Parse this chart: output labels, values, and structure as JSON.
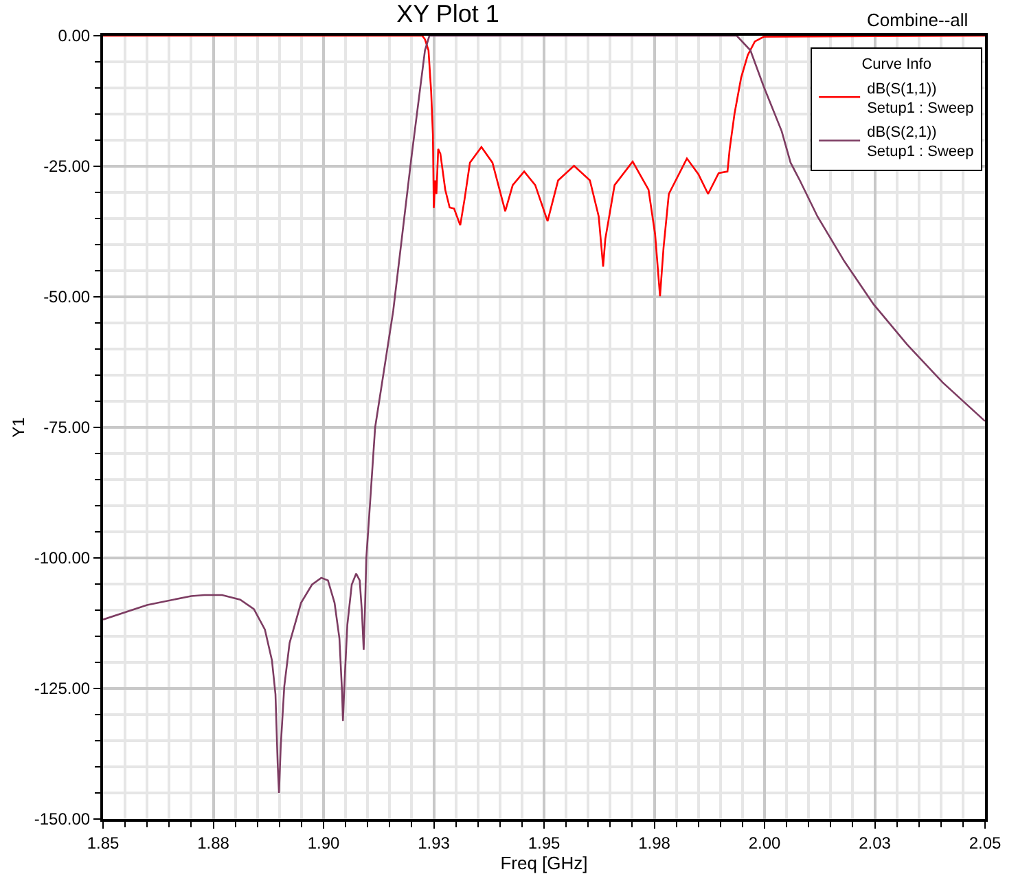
{
  "chart_data": {
    "type": "line",
    "title": "XY Plot 1",
    "xlabel": "Freq [GHz]",
    "ylabel": "Y1",
    "legend_title": "Curve Info",
    "annotations": [
      "Combine--all"
    ],
    "xlim": [
      1.85,
      2.05
    ],
    "ylim": [
      -150,
      0
    ],
    "xticks": [
      1.85,
      {
        "value": 1.875,
        "label": "1.88"
      },
      {
        "value": 1.9,
        "label": "1.90"
      },
      {
        "value": 1.925,
        "label": "1.93"
      },
      1.95,
      {
        "value": 1.975,
        "label": "1.98"
      },
      {
        "value": 2.0,
        "label": "2.00"
      },
      {
        "value": 2.025,
        "label": "2.03"
      },
      2.05
    ],
    "yticks": [
      {
        "value": 0,
        "label": "0.00"
      },
      {
        "value": -25,
        "label": "-25.00"
      },
      {
        "value": -50,
        "label": "-50.00"
      },
      {
        "value": -75,
        "label": "-75.00"
      },
      {
        "value": -100,
        "label": "-100.00"
      },
      {
        "value": -125,
        "label": "-125.00"
      },
      {
        "value": -150,
        "label": "-150.00"
      }
    ],
    "grid": true,
    "legend": "top right",
    "marker": "none",
    "line_style": "solid",
    "series": [
      {
        "name": "dB(S(1,1))\nSetup1 : Sweep",
        "color": "#ff0000",
        "x": [
          1.85,
          1.9224,
          1.923,
          1.9238,
          1.9244,
          1.9248,
          1.925,
          1.9253,
          1.9256,
          1.926,
          1.9265,
          1.9276,
          1.9286,
          1.9296,
          1.931,
          1.932,
          1.9332,
          1.9358,
          1.9383,
          1.9412,
          1.9429,
          1.9455,
          1.948,
          1.9508,
          1.9532,
          1.9568,
          1.9604,
          1.9624,
          1.9634,
          1.9639,
          1.966,
          1.9701,
          1.9737,
          1.9752,
          1.9763,
          1.9771,
          1.9783,
          1.9824,
          1.985,
          1.9872,
          1.9896,
          1.9916,
          1.9921,
          1.9932,
          1.9947,
          1.9962,
          1.9978,
          1.9998,
          2.05
        ],
        "values": [
          0,
          0,
          -0.7,
          -2.8,
          -10.6,
          -19,
          -33,
          -27.7,
          -30.3,
          -21.7,
          -22.6,
          -29.5,
          -32.9,
          -33.1,
          -36.3,
          -31.2,
          -24.3,
          -21.3,
          -24.3,
          -33.6,
          -28.6,
          -26.0,
          -28.6,
          -35.5,
          -27.7,
          -24.9,
          -27.7,
          -34.6,
          -44.2,
          -38.9,
          -28.6,
          -24.1,
          -29.5,
          -38.1,
          -49.9,
          -40.6,
          -30.3,
          -23.5,
          -26.5,
          -30.3,
          -26.3,
          -26.0,
          -21.7,
          -14.9,
          -8.0,
          -3.7,
          -1.1,
          -0.2,
          0
        ]
      },
      {
        "name": "dB(S(2,1))\nSetup1 : Sweep",
        "color": "#7d3c62",
        "x": [
          1.85,
          1.86,
          1.87,
          1.873,
          1.877,
          1.8811,
          1.8842,
          1.8867,
          1.8883,
          1.8891,
          1.8896,
          1.8899,
          1.8903,
          1.8911,
          1.8923,
          1.8949,
          1.8974,
          1.8995,
          1.901,
          1.9025,
          1.9036,
          1.9042,
          1.9044,
          1.9048,
          1.9054,
          1.9064,
          1.9074,
          1.9082,
          1.9087,
          1.9091,
          1.9094,
          1.9097,
          1.9104,
          1.9117,
          1.9158,
          1.9199,
          1.923,
          1.924,
          1.9937,
          1.9968,
          1.9998,
          2.0039,
          2.0059,
          2.008,
          2.012,
          2.0181,
          2.0247,
          2.0323,
          2.0404,
          2.0496,
          2.05
        ],
        "values": [
          -111.8,
          -109,
          -107.3,
          -107.1,
          -107.1,
          -108.0,
          -109.8,
          -113.7,
          -119.6,
          -126.1,
          -139.4,
          -145,
          -136,
          -124.6,
          -116.3,
          -108.6,
          -105.1,
          -103.8,
          -104.3,
          -108.6,
          -115.4,
          -125.7,
          -131.2,
          -123.1,
          -112.8,
          -105.1,
          -103,
          -104.3,
          -110.3,
          -117.6,
          -109.8,
          -100,
          -91.4,
          -75,
          -52.7,
          -23.5,
          -2.8,
          0,
          0,
          -2.8,
          -9.7,
          -18.3,
          -24.3,
          -27.7,
          -34.6,
          -43.2,
          -51.4,
          -59.1,
          -66.4,
          -73.5,
          -73.8
        ]
      }
    ]
  }
}
